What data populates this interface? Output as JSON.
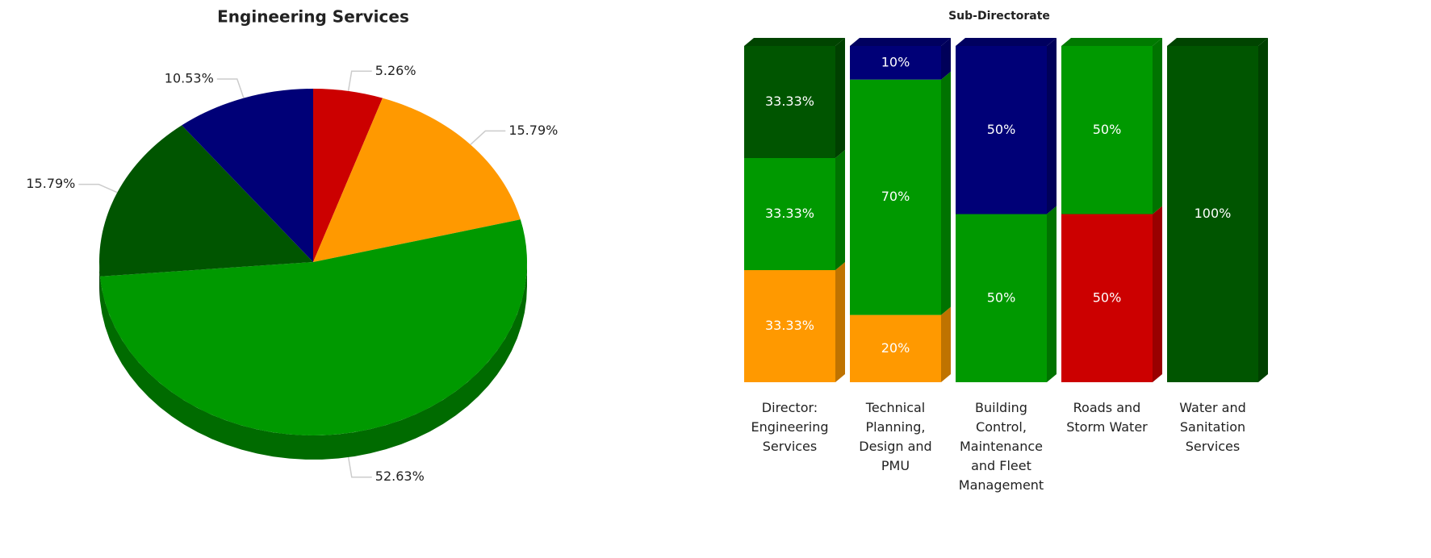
{
  "chart_data": [
    {
      "type": "pie",
      "title": "Engineering Services",
      "values": [
        5.26,
        15.79,
        52.63,
        15.79,
        10.53
      ],
      "value_labels": [
        "5.26%",
        "15.79%",
        "52.63%",
        "15.79%",
        "10.53%"
      ],
      "colors": [
        "#cc0000",
        "#ff9900",
        "#009900",
        "#005500",
        "#000077"
      ]
    },
    {
      "type": "stacked_bar",
      "title": "Sub-Directorate",
      "categories": [
        "Director:\nEngineering\nServices",
        "Technical\nPlanning,\nDesign and\nPMU",
        "Building\nControl,\nMaintenance\nand Fleet\nManagement",
        "Roads and\nStorm Water",
        "Water and\nSanitation\nServices"
      ],
      "series": [
        {
          "color": "#ff9900",
          "values": [
            33.33,
            20,
            null,
            null,
            null
          ],
          "value_labels": [
            "33.33%",
            "20%",
            null,
            null,
            null
          ]
        },
        {
          "color": "#cc0000",
          "values": [
            null,
            null,
            null,
            50,
            null
          ],
          "value_labels": [
            null,
            null,
            null,
            "50%",
            null
          ]
        },
        {
          "color": "#009900",
          "values": [
            33.33,
            70,
            50,
            50,
            null
          ],
          "value_labels": [
            "33.33%",
            "70%",
            "50%",
            "50%",
            null
          ]
        },
        {
          "color": "#000077",
          "values": [
            null,
            10,
            50,
            null,
            null
          ],
          "value_labels": [
            null,
            "10%",
            "50%",
            null,
            null
          ]
        },
        {
          "color": "#005500",
          "values": [
            33.33,
            null,
            null,
            null,
            100
          ],
          "value_labels": [
            "33.33%",
            null,
            null,
            null,
            "100%"
          ]
        }
      ]
    }
  ]
}
